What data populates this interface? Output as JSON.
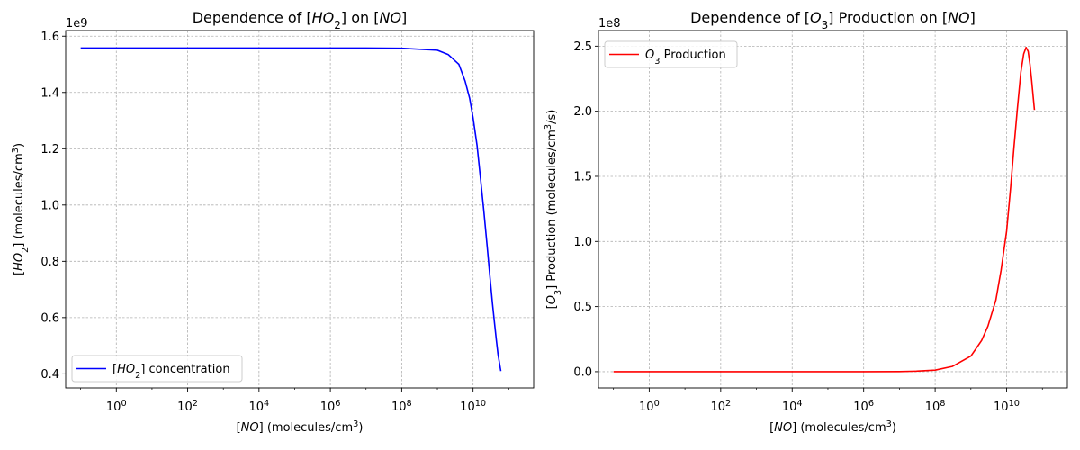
{
  "chart_data": [
    {
      "type": "line",
      "title": "Dependence of [HO2] on [NO]",
      "xlabel": "[NO] (molecules/cm3)",
      "ylabel": "[HO2] (molecules/cm3)",
      "x_scale": "log",
      "xlim": [
        0.038,
        500000000000
      ],
      "ylim": [
        0.35,
        1.62
      ],
      "y_offset_label": "1e9",
      "grid": true,
      "legend_position": "lower-left",
      "x_ticks": [
        {
          "value": 1,
          "base": "10",
          "exp": "0"
        },
        {
          "value": 100,
          "base": "10",
          "exp": "2"
        },
        {
          "value": 10000,
          "base": "10",
          "exp": "4"
        },
        {
          "value": 1000000,
          "base": "10",
          "exp": "6"
        },
        {
          "value": 100000000,
          "base": "10",
          "exp": "8"
        },
        {
          "value": 10000000000,
          "base": "10",
          "exp": "10"
        }
      ],
      "y_ticks": [
        "0.4",
        "0.6",
        "0.8",
        "1.0",
        "1.2",
        "1.4",
        "1.6"
      ],
      "series": [
        {
          "name": "[HO2] concentration",
          "color": "#0000ff",
          "x": [
            0.1,
            1,
            10,
            100,
            1000,
            10000,
            100000,
            1000000,
            10000000,
            100000000,
            1000000000,
            2000000000,
            4000000000,
            6000000000,
            8000000000,
            10000000000,
            13000000000,
            16000000000,
            20000000000,
            25000000000,
            30000000000,
            35000000000,
            40000000000,
            45000000000,
            50000000000,
            60000000000
          ],
          "y": [
            1.558,
            1.558,
            1.558,
            1.558,
            1.558,
            1.558,
            1.558,
            1.558,
            1.558,
            1.557,
            1.55,
            1.535,
            1.5,
            1.44,
            1.38,
            1.31,
            1.21,
            1.1,
            0.98,
            0.85,
            0.74,
            0.65,
            0.58,
            0.52,
            0.47,
            0.41
          ]
        }
      ]
    },
    {
      "type": "line",
      "title": "Dependence of [O3] Production on [NO]",
      "xlabel": "[NO] (molecules/cm3)",
      "ylabel": "[O3] Production (molecules/cm3/s)",
      "x_scale": "log",
      "xlim": [
        0.038,
        500000000000
      ],
      "ylim": [
        -0.125,
        2.62
      ],
      "y_offset_label": "1e8",
      "grid": true,
      "legend_position": "upper-left",
      "x_ticks": [
        {
          "value": 1,
          "base": "10",
          "exp": "0"
        },
        {
          "value": 100,
          "base": "10",
          "exp": "2"
        },
        {
          "value": 10000,
          "base": "10",
          "exp": "4"
        },
        {
          "value": 1000000,
          "base": "10",
          "exp": "6"
        },
        {
          "value": 100000000,
          "base": "10",
          "exp": "8"
        },
        {
          "value": 10000000000,
          "base": "10",
          "exp": "10"
        }
      ],
      "y_ticks": [
        "0.0",
        "0.5",
        "1.0",
        "1.5",
        "2.0",
        "2.5"
      ],
      "series": [
        {
          "name": "O3 Production",
          "color": "#ff0000",
          "x": [
            0.1,
            1,
            10,
            100,
            1000,
            10000,
            100000,
            1000000,
            10000000,
            30000000,
            100000000,
            300000000,
            1000000000,
            2000000000,
            3000000000,
            5000000000,
            7000000000,
            10000000000,
            13000000000,
            16000000000,
            20000000000,
            25000000000,
            30000000000,
            35000000000,
            40000000000,
            45000000000,
            50000000000,
            60000000000
          ],
          "y": [
            0,
            0,
            0,
            0,
            0,
            0,
            0,
            0.0001,
            0.001,
            0.004,
            0.012,
            0.04,
            0.12,
            0.24,
            0.35,
            0.55,
            0.78,
            1.08,
            1.42,
            1.72,
            2.02,
            2.3,
            2.44,
            2.49,
            2.46,
            2.36,
            2.24,
            2.01
          ]
        }
      ]
    }
  ]
}
